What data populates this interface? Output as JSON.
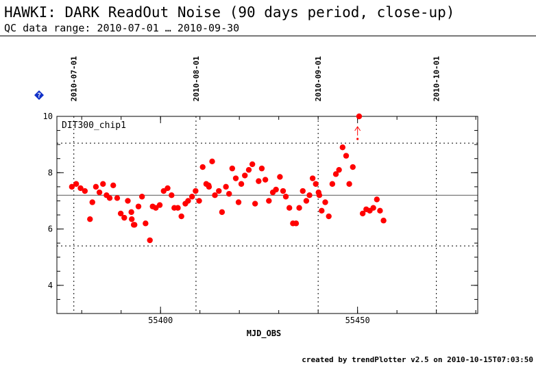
{
  "header": {
    "title": "HAWKI: DARK ReadOut Noise (90 days period, close-up)",
    "subtitle": "QC data range: 2010-07-01 … 2010-09-30"
  },
  "footer": {
    "text": "created by trendPlotter v2.5 on 2010-10-15T07:03:50"
  },
  "colors": {
    "points": "#ff0000",
    "frame": "#000000",
    "median_line": "#555555"
  },
  "icons": {
    "help": "help-diamond-icon"
  },
  "chart_data": {
    "type": "scatter",
    "panel_label": "DIT300_chip1",
    "xlabel": "MJD_OBS",
    "ylabel": "",
    "xlim": [
      55373.7,
      55480.5
    ],
    "ylim": [
      3,
      10
    ],
    "x_ticks": [
      55400,
      55450
    ],
    "x_tick_labels": [
      "55400",
      "55450"
    ],
    "y_ticks": [
      4,
      6,
      8,
      10
    ],
    "y_tick_labels": [
      "4",
      "6",
      "8",
      "10"
    ],
    "date_markers": [
      {
        "mjd": 55378,
        "label": "2010-07-01"
      },
      {
        "mjd": 55409,
        "label": "2010-08-01"
      },
      {
        "mjd": 55440,
        "label": "2010-09-01"
      },
      {
        "mjd": 55470,
        "label": "2010-10-01"
      }
    ],
    "median": 7.2,
    "band": [
      5.4,
      9.05
    ],
    "series": [
      {
        "points": [
          [
            55377.5,
            7.5
          ],
          [
            55378.6,
            7.6
          ],
          [
            55379.7,
            7.45
          ],
          [
            55380.8,
            7.35
          ],
          [
            55382.1,
            6.35
          ],
          [
            55382.7,
            6.95
          ],
          [
            55383.6,
            7.5
          ],
          [
            55384.5,
            7.3
          ],
          [
            55385.4,
            7.6
          ],
          [
            55386.3,
            7.2
          ],
          [
            55387.1,
            7.1
          ],
          [
            55388.0,
            7.55
          ],
          [
            55389.0,
            7.1
          ],
          [
            55389.9,
            6.55
          ],
          [
            55390.8,
            6.4
          ],
          [
            55391.7,
            7.0
          ],
          [
            55392.6,
            6.6
          ],
          [
            55392.7,
            6.35
          ],
          [
            55393.2,
            6.15
          ],
          [
            55393.4,
            6.15
          ],
          [
            55394.4,
            6.8
          ],
          [
            55395.3,
            7.15
          ],
          [
            55396.2,
            6.2
          ],
          [
            55397.3,
            5.6
          ],
          [
            55398.0,
            6.8
          ],
          [
            55398.8,
            6.75
          ],
          [
            55399.8,
            6.85
          ],
          [
            55400.8,
            7.35
          ],
          [
            55401.8,
            7.45
          ],
          [
            55402.8,
            7.2
          ],
          [
            55403.5,
            6.75
          ],
          [
            55404.4,
            6.75
          ],
          [
            55405.3,
            6.45
          ],
          [
            55406.3,
            6.9
          ],
          [
            55407.0,
            7.0
          ],
          [
            55408.0,
            7.15
          ],
          [
            55408.9,
            7.35
          ],
          [
            55409.8,
            7.0
          ],
          [
            55410.7,
            8.2
          ],
          [
            55411.6,
            7.6
          ],
          [
            55412.2,
            7.55
          ],
          [
            55412.3,
            7.5
          ],
          [
            55413.1,
            8.4
          ],
          [
            55413.8,
            7.2
          ],
          [
            55414.8,
            7.35
          ],
          [
            55415.6,
            6.6
          ],
          [
            55416.6,
            7.5
          ],
          [
            55417.4,
            7.25
          ],
          [
            55418.2,
            8.15
          ],
          [
            55419.1,
            7.8
          ],
          [
            55419.8,
            6.95
          ],
          [
            55420.5,
            7.6
          ],
          [
            55421.4,
            7.9
          ],
          [
            55422.4,
            8.1
          ],
          [
            55423.3,
            8.3
          ],
          [
            55424.0,
            6.9
          ],
          [
            55424.9,
            7.7
          ],
          [
            55425.7,
            8.15
          ],
          [
            55426.6,
            7.75
          ],
          [
            55427.5,
            7.0
          ],
          [
            55428.5,
            7.3
          ],
          [
            55429.3,
            7.4
          ],
          [
            55430.3,
            7.85
          ],
          [
            55431.1,
            7.35
          ],
          [
            55431.8,
            7.15
          ],
          [
            55432.7,
            6.75
          ],
          [
            55433.6,
            6.2
          ],
          [
            55434.4,
            6.2
          ],
          [
            55435.2,
            6.75
          ],
          [
            55436.1,
            7.35
          ],
          [
            55437.0,
            7.0
          ],
          [
            55437.8,
            7.2
          ],
          [
            55438.6,
            7.8
          ],
          [
            55439.4,
            7.6
          ],
          [
            55440.1,
            7.3
          ],
          [
            55440.3,
            7.2
          ],
          [
            55440.9,
            6.65
          ],
          [
            55441.8,
            6.95
          ],
          [
            55442.7,
            6.45
          ],
          [
            55443.6,
            7.6
          ],
          [
            55444.5,
            7.95
          ],
          [
            55445.3,
            8.1
          ],
          [
            55446.2,
            8.9
          ],
          [
            55447.1,
            8.6
          ],
          [
            55447.9,
            7.6
          ],
          [
            55448.8,
            8.2
          ],
          [
            55450.4,
            10.0
          ],
          [
            55451.3,
            6.55
          ],
          [
            55452.2,
            6.7
          ],
          [
            55453.1,
            6.65
          ],
          [
            55454.0,
            6.75
          ],
          [
            55454.9,
            7.05
          ],
          [
            55455.7,
            6.65
          ],
          [
            55456.6,
            6.3
          ]
        ]
      }
    ],
    "outliers": [
      {
        "x": 55450.0,
        "direction": "up"
      }
    ]
  }
}
